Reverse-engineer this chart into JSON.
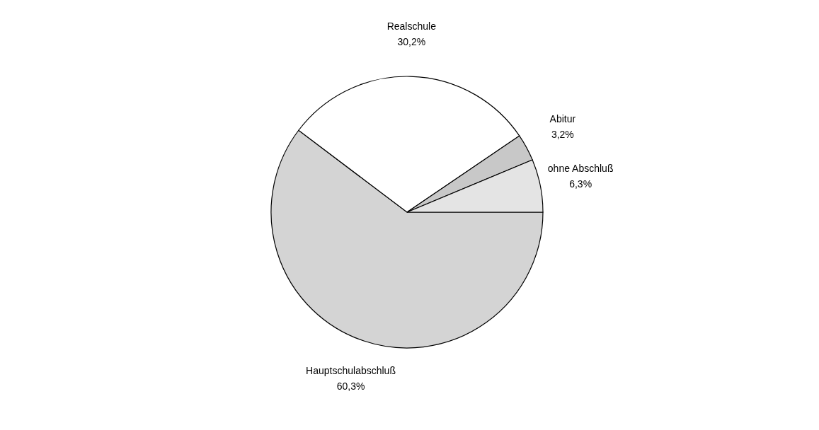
{
  "chart_data": {
    "type": "pie",
    "categories": [
      "Hauptschulabschluß",
      "Realschule",
      "Abitur",
      "ohne Abschluß"
    ],
    "values": [
      60.3,
      30.2,
      3.2,
      6.3
    ],
    "value_labels": [
      "60,3%",
      "30,2%",
      "3,2%",
      "6,3%"
    ],
    "colors": [
      "#d4d4d4",
      "#ffffff",
      "#c8c8c8",
      "#e4e4e4"
    ],
    "legend": false
  }
}
